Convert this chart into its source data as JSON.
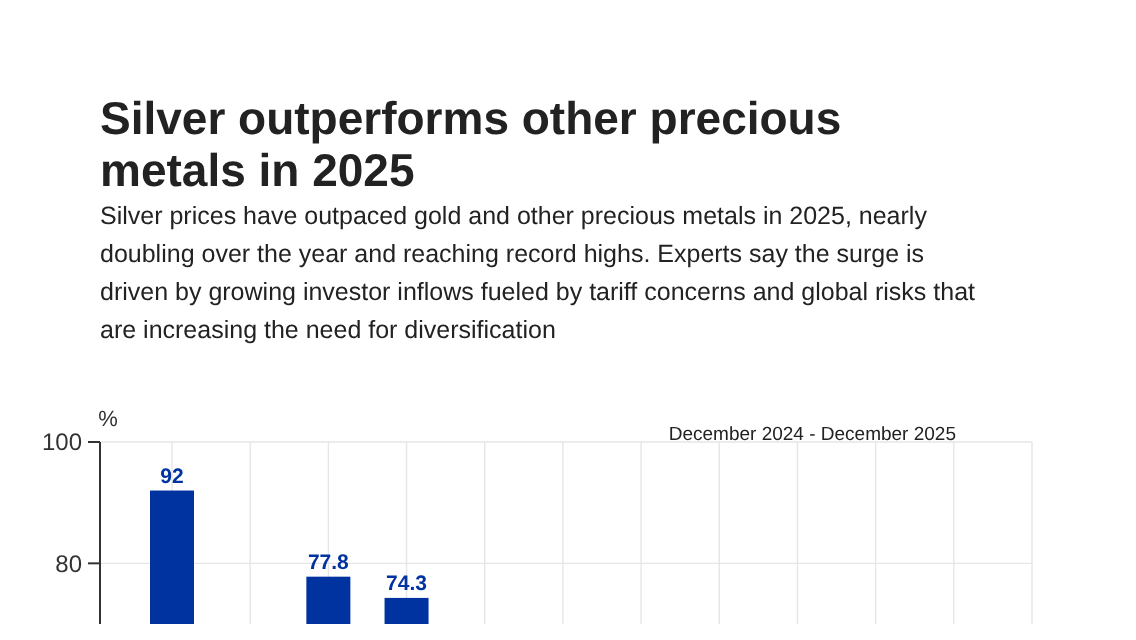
{
  "chart_data": {
    "type": "bar",
    "title": "Silver outperforms other precious metals in 2025",
    "subtitle": "Silver prices have outpaced gold and other precious metals in 2025, nearly doubling over the year and reaching record highs. Experts say the surge is driven by growing investor inflows fueled by tariff concerns and global risks that are increasing the need for diversification",
    "ylabel": "%",
    "annotations": [
      "December 2024 - December 2025"
    ],
    "categories": [
      null,
      null,
      null,
      null,
      null,
      null,
      null,
      null,
      null,
      null,
      null,
      null
    ],
    "values": [
      92,
      null,
      77.8,
      74.3,
      null,
      null,
      null,
      null,
      null,
      null,
      null,
      null
    ],
    "value_labels": [
      "92",
      null,
      "77.8",
      "74.3",
      null,
      null,
      null,
      null,
      null,
      null,
      null,
      null
    ],
    "color": "#0033a0",
    "ylim": [
      70,
      100
    ],
    "yticks": [
      80,
      100
    ],
    "grid": true
  }
}
